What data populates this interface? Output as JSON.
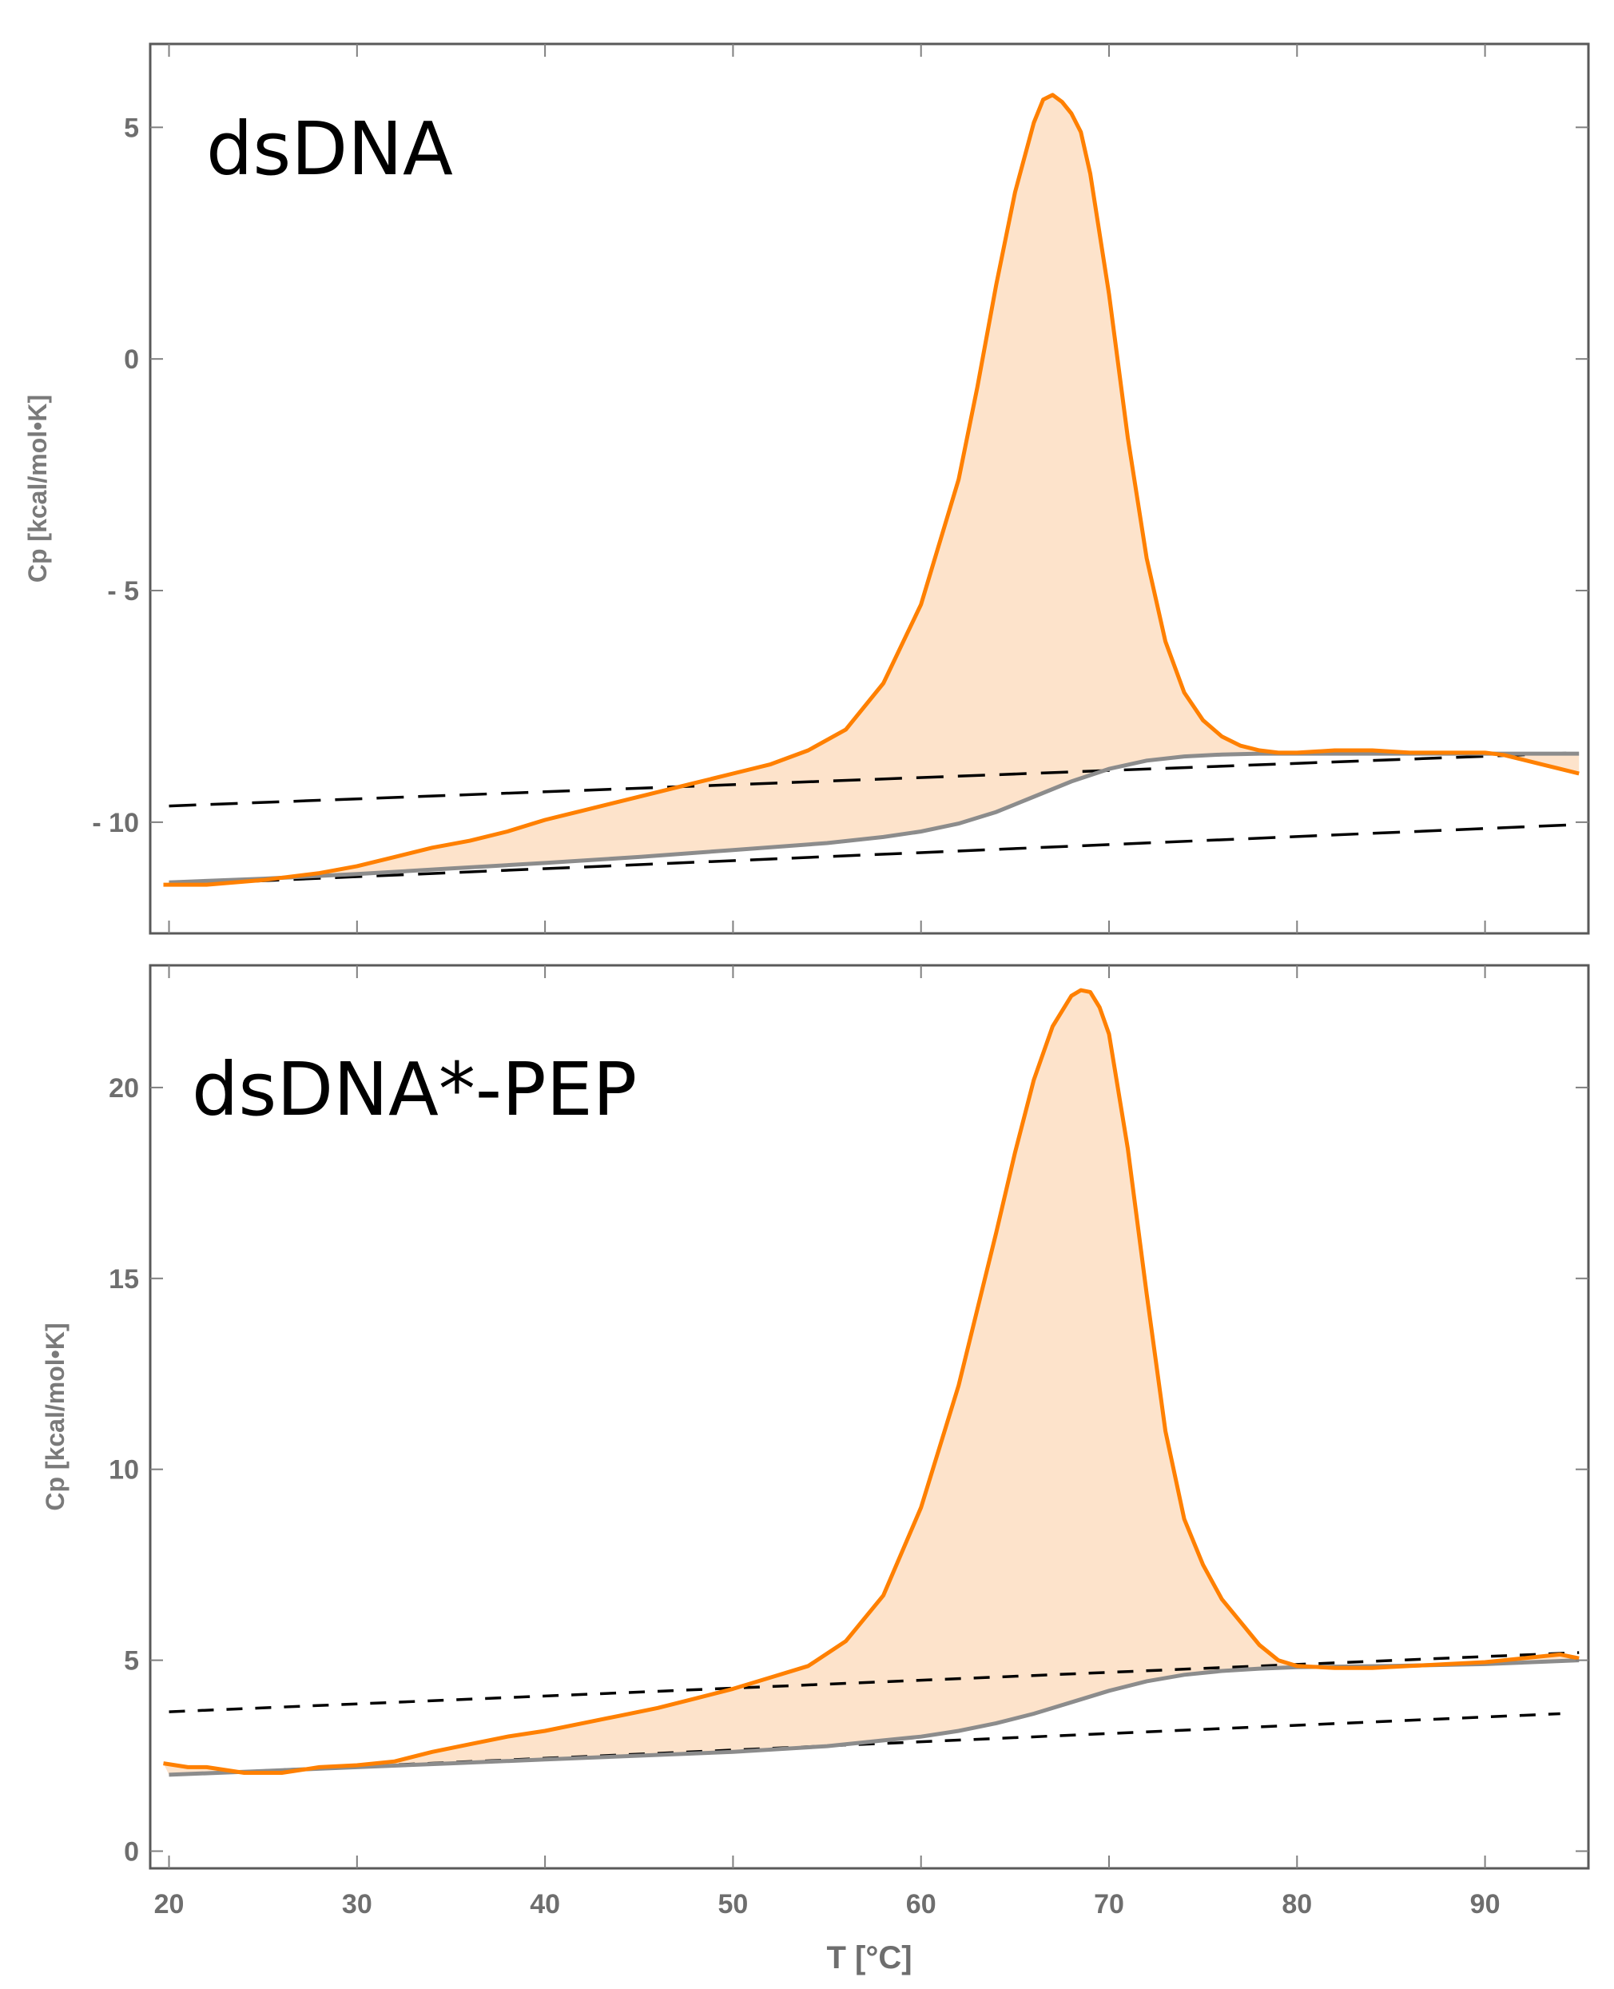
{
  "chart_data": [
    {
      "type": "area",
      "panel_label": "dsDNA",
      "ylabel": "Cp [kcal/mol•K]",
      "xlabel": "",
      "xlim": [
        19,
        95.5
      ],
      "ylim": [
        -12.4,
        6.8
      ],
      "yticks": [
        5,
        0,
        -5,
        -10
      ],
      "ytick_labels": [
        "5",
        "0",
        "- 5",
        "- 10"
      ],
      "xticks": [
        20,
        30,
        40,
        50,
        60,
        70,
        80,
        90
      ],
      "series": [
        {
          "name": "Cp",
          "color": "#ff8000",
          "x": [
            19.7,
            22,
            25,
            28,
            30,
            32,
            34,
            36,
            38,
            40,
            42,
            44,
            46,
            48,
            50,
            52,
            54,
            56,
            58,
            60,
            62,
            63,
            64,
            65,
            66,
            66.5,
            67,
            67.5,
            68,
            68.5,
            69,
            70,
            71,
            72,
            73,
            74,
            75,
            76,
            77,
            78,
            79,
            80,
            82,
            84,
            86,
            88,
            90,
            91,
            92,
            93,
            94,
            95
          ],
          "y": [
            -11.35,
            -11.35,
            -11.25,
            -11.1,
            -10.95,
            -10.75,
            -10.55,
            -10.4,
            -10.2,
            -9.95,
            -9.75,
            -9.55,
            -9.35,
            -9.15,
            -8.95,
            -8.75,
            -8.45,
            -8.0,
            -7.0,
            -5.3,
            -2.6,
            -0.6,
            1.6,
            3.6,
            5.1,
            5.6,
            5.7,
            5.55,
            5.3,
            4.9,
            4.0,
            1.4,
            -1.7,
            -4.3,
            -6.1,
            -7.2,
            -7.8,
            -8.15,
            -8.35,
            -8.45,
            -8.5,
            -8.5,
            -8.45,
            -8.45,
            -8.5,
            -8.5,
            -8.5,
            -8.55,
            -8.65,
            -8.75,
            -8.85,
            -8.95
          ]
        },
        {
          "name": "baseline",
          "color": "#8c8c8c",
          "x": [
            20,
            25,
            30,
            35,
            40,
            45,
            50,
            55,
            58,
            60,
            62,
            64,
            66,
            68,
            70,
            72,
            74,
            76,
            78,
            80,
            85,
            90,
            95
          ],
          "y": [
            -11.3,
            -11.22,
            -11.12,
            -11.0,
            -10.88,
            -10.75,
            -10.6,
            -10.45,
            -10.32,
            -10.2,
            -10.03,
            -9.78,
            -9.45,
            -9.12,
            -8.85,
            -8.67,
            -8.58,
            -8.54,
            -8.52,
            -8.52,
            -8.52,
            -8.52,
            -8.52
          ]
        },
        {
          "name": "upper linear baseline",
          "style": "dashed",
          "x": [
            20,
            95
          ],
          "y": [
            -9.65,
            -8.5
          ]
        },
        {
          "name": "lower linear baseline",
          "style": "dashed",
          "x": [
            20,
            95
          ],
          "y": [
            -11.35,
            -10.05
          ]
        }
      ]
    },
    {
      "type": "area",
      "panel_label": "dsDNA*-PEP",
      "ylabel": "Cp [kcal/mol•K]",
      "xlabel": "T  [°C]",
      "xlim": [
        19,
        95.5
      ],
      "ylim": [
        -0.45,
        23.2
      ],
      "yticks": [
        0,
        5,
        10,
        15,
        20
      ],
      "ytick_labels": [
        "0",
        "5",
        "10",
        "15",
        "20"
      ],
      "xticks": [
        20,
        30,
        40,
        50,
        60,
        70,
        80,
        90
      ],
      "xtick_labels": [
        "20",
        "30",
        "40",
        "50",
        "60",
        "70",
        "80",
        "90"
      ],
      "series": [
        {
          "name": "Cp",
          "color": "#ff8000",
          "x": [
            19.7,
            21,
            22,
            24,
            26,
            28,
            30,
            32,
            34,
            36,
            38,
            40,
            42,
            44,
            46,
            48,
            50,
            52,
            54,
            56,
            58,
            60,
            62,
            64,
            65,
            66,
            67,
            68,
            68.5,
            69,
            69.5,
            70,
            71,
            72,
            73,
            74,
            75,
            76,
            77,
            78,
            79,
            80,
            82,
            84,
            86,
            88,
            90,
            92,
            94,
            95
          ],
          "y": [
            2.3,
            2.2,
            2.2,
            2.05,
            2.05,
            2.2,
            2.25,
            2.35,
            2.6,
            2.8,
            3.0,
            3.15,
            3.35,
            3.55,
            3.75,
            4.0,
            4.25,
            4.55,
            4.85,
            5.5,
            6.7,
            9.0,
            12.2,
            16.2,
            18.3,
            20.2,
            21.6,
            22.4,
            22.55,
            22.5,
            22.1,
            21.4,
            18.4,
            14.6,
            11.0,
            8.7,
            7.5,
            6.6,
            6.0,
            5.4,
            5.0,
            4.85,
            4.8,
            4.8,
            4.85,
            4.9,
            4.95,
            5.05,
            5.15,
            5.05
          ]
        },
        {
          "name": "baseline",
          "color": "#8c8c8c",
          "x": [
            20,
            25,
            30,
            35,
            40,
            45,
            50,
            55,
            58,
            60,
            62,
            64,
            66,
            68,
            70,
            72,
            74,
            76,
            78,
            80,
            85,
            90,
            95
          ],
          "y": [
            2.0,
            2.1,
            2.2,
            2.3,
            2.4,
            2.5,
            2.6,
            2.75,
            2.9,
            3.0,
            3.15,
            3.35,
            3.6,
            3.9,
            4.2,
            4.45,
            4.62,
            4.72,
            4.78,
            4.82,
            4.85,
            4.9,
            5.0
          ]
        },
        {
          "name": "upper linear baseline",
          "style": "dashed",
          "x": [
            20,
            95
          ],
          "y": [
            3.65,
            5.2
          ]
        },
        {
          "name": "lower linear baseline",
          "style": "dashed",
          "x": [
            20,
            94
          ],
          "y": [
            2.0,
            3.6
          ]
        }
      ]
    }
  ]
}
